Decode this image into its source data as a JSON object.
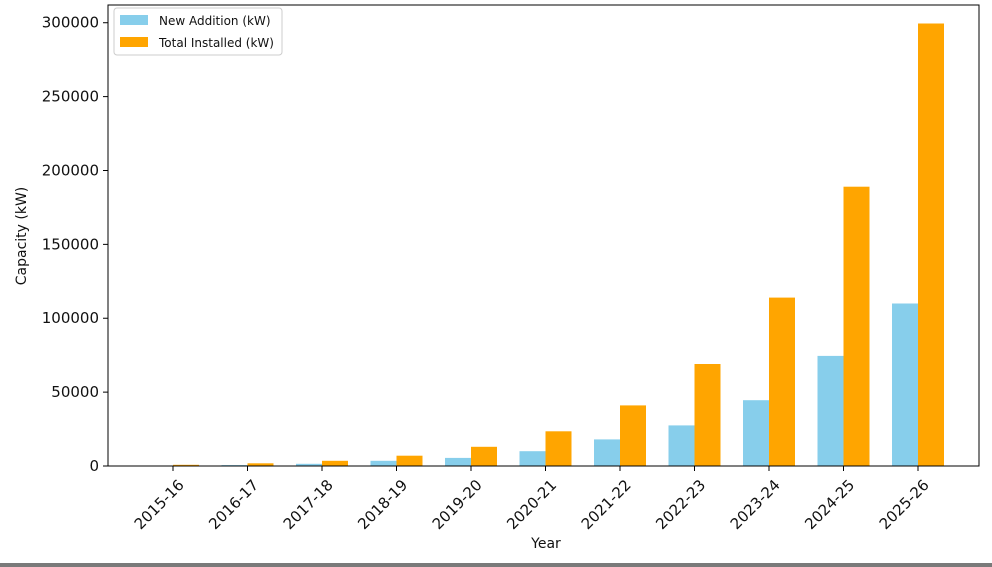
{
  "chart_data": {
    "type": "bar",
    "title": "",
    "xlabel": "Year",
    "ylabel": "Capacity (kW)",
    "categories": [
      "2015-16",
      "2016-17",
      "2017-18",
      "2018-19",
      "2019-20",
      "2020-21",
      "2021-22",
      "2022-23",
      "2023-24",
      "2024-25",
      "2025-26"
    ],
    "series": [
      {
        "name": "New Addition (kW)",
        "color": "#87CEEB",
        "values": [
          300,
          600,
          1500,
          3500,
          5500,
          10000,
          18000,
          27500,
          44500,
          74500,
          110000
        ]
      },
      {
        "name": "Total Installed (kW)",
        "color": "#FFA500",
        "values": [
          800,
          1800,
          3500,
          7000,
          13000,
          23500,
          41000,
          69000,
          114000,
          189000,
          299500
        ]
      }
    ],
    "ylim": [
      0,
      312000
    ],
    "yticks": [
      0,
      50000,
      100000,
      150000,
      200000,
      250000,
      300000
    ],
    "ytick_labels": [
      "0",
      "50000",
      "100000",
      "150000",
      "200000",
      "250000",
      "300000"
    ],
    "grid": false,
    "legend_position": "top-left"
  }
}
